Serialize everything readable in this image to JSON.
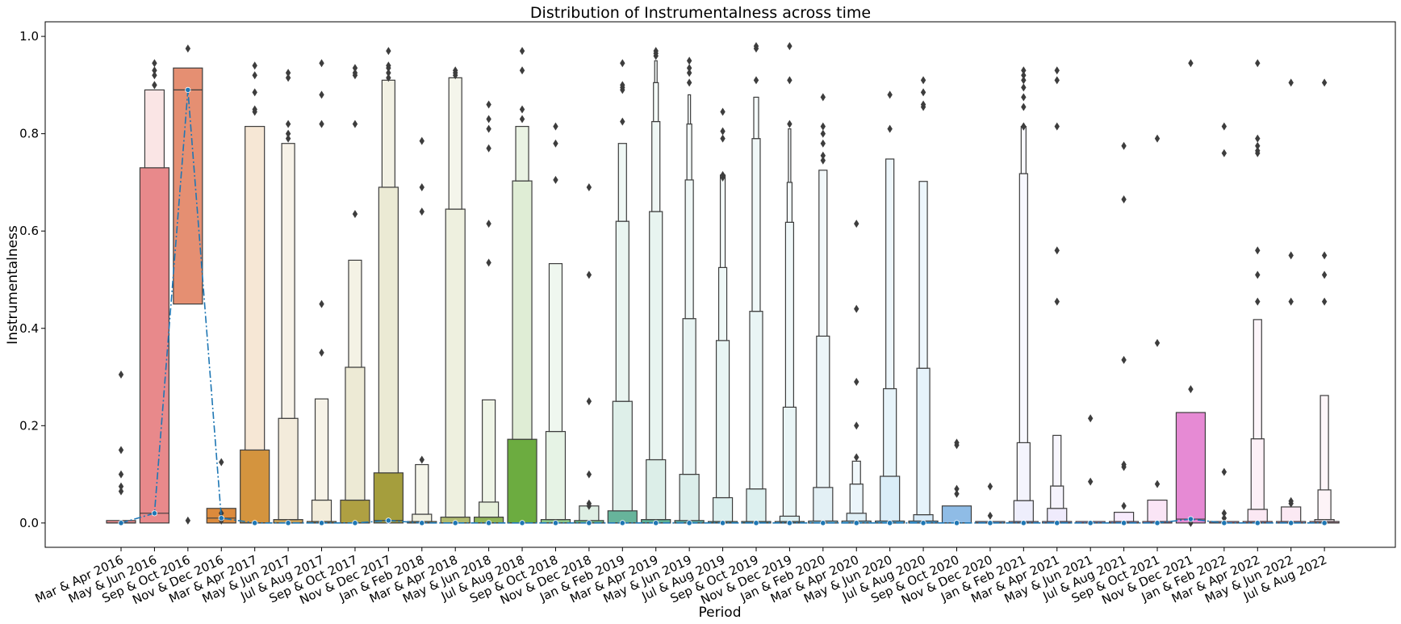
{
  "chart_data": {
    "type": "boxenplot",
    "title": "Distribution of Instrumentalness across time",
    "xlabel": "Period",
    "ylabel": "Instrumentalness",
    "ylim": [
      -0.05,
      1.03
    ],
    "yticks": [
      "0.0",
      "0.2",
      "0.4",
      "0.6",
      "0.8",
      "1.0"
    ],
    "grid": false,
    "overlay": {
      "type": "line",
      "style": "dash-dot",
      "marker": "circle",
      "color": "#1f77b4",
      "statistic": "median"
    },
    "categories": [
      "Mar & Apr 2016",
      "May & Jun 2016",
      "Sep & Oct 2016",
      "Nov & Dec 2016",
      "Mar & Apr 2017",
      "May & Jun 2017",
      "Jul & Aug 2017",
      "Sep & Oct 2017",
      "Nov & Dec 2017",
      "Jan & Feb 2018",
      "Mar & Apr 2018",
      "May & Jun 2018",
      "Jul & Aug 2018",
      "Sep & Oct 2018",
      "Nov & Dec 2018",
      "Jan & Feb 2019",
      "Mar & Apr 2019",
      "May & Jun 2019",
      "Jul & Aug 2019",
      "Sep & Oct 2019",
      "Nov & Dec 2019",
      "Jan & Feb 2020",
      "Mar & Apr 2020",
      "May & Jun 2020",
      "Jul & Aug 2020",
      "Sep & Oct 2020",
      "Nov & Dec 2020",
      "Jan & Feb 2021",
      "Mar & Apr 2021",
      "May & Jun 2021",
      "Jul & Aug 2021",
      "Sep & Oct 2021",
      "Nov & Dec 2021",
      "Jan & Feb 2022",
      "Mar & Apr 2022",
      "May & Jun 2022",
      "Jul & Aug 2022"
    ],
    "colors": [
      "#e8898b",
      "#e8898b",
      "#e58f72",
      "#dc8a3c",
      "#d4943e",
      "#c9a25a",
      "#c3a959",
      "#afa042",
      "#a59e3d",
      "#b7b66c",
      "#b0bb6f",
      "#8fb456",
      "#6cac40",
      "#8ec98a",
      "#6db783",
      "#67b49b",
      "#5eb397",
      "#5eb1a6",
      "#5bb6b0",
      "#65b9b4",
      "#64b5bf",
      "#80bcd1",
      "#6eb6d8",
      "#55aede",
      "#4da6e0",
      "#8fbce6",
      "#9eb4ee",
      "#b0b0f0",
      "#b7a6f0",
      "#c9a3f2",
      "#d9a4f0",
      "#e88ad8",
      "#e68ad4",
      "#ed9bcf",
      "#ee97c8",
      "#ef9dc8",
      "#f2a6c6"
    ],
    "medians": [
      0.0,
      0.02,
      0.89,
      0.01,
      0.0,
      0.0,
      0.0,
      0.0,
      0.005,
      0.0,
      0.0,
      0.0,
      0.0,
      0.0,
      0.0,
      0.0,
      0.0,
      0.0,
      0.0,
      0.0,
      0.0,
      0.0,
      0.0,
      0.0,
      0.0,
      0.0,
      0.0,
      0.0,
      0.0,
      0.0,
      0.0,
      0.0,
      0.008,
      0.0,
      0.0,
      0.0,
      0.0
    ],
    "boxes": [
      [
        [
          0.0,
          0.005
        ]
      ],
      [
        [
          0.0,
          0.73
        ],
        [
          0.73,
          0.89
        ]
      ],
      [
        [
          0.45,
          0.935
        ]
      ],
      [
        [
          0.0,
          0.03
        ]
      ],
      [
        [
          0.0,
          0.15
        ],
        [
          0.15,
          0.815
        ]
      ],
      [
        [
          0.0,
          0.007
        ],
        [
          0.007,
          0.215
        ],
        [
          0.215,
          0.78
        ]
      ],
      [
        [
          0.0,
          0.003
        ],
        [
          0.003,
          0.047
        ],
        [
          0.047,
          0.255
        ]
      ],
      [
        [
          0.0,
          0.047
        ],
        [
          0.047,
          0.32
        ],
        [
          0.32,
          0.54
        ]
      ],
      [
        [
          0.0,
          0.103
        ],
        [
          0.103,
          0.69
        ],
        [
          0.69,
          0.91
        ]
      ],
      [
        [
          0.0,
          0.003
        ],
        [
          0.003,
          0.018
        ],
        [
          0.018,
          0.12
        ]
      ],
      [
        [
          0.0,
          0.012
        ],
        [
          0.012,
          0.645
        ],
        [
          0.645,
          0.915
        ]
      ],
      [
        [
          0.0,
          0.012
        ],
        [
          0.012,
          0.043
        ],
        [
          0.043,
          0.253
        ]
      ],
      [
        [
          0.0,
          0.172
        ],
        [
          0.172,
          0.703
        ],
        [
          0.703,
          0.815
        ]
      ],
      [
        [
          0.0,
          0.007
        ],
        [
          0.007,
          0.188
        ],
        [
          0.188,
          0.533
        ]
      ],
      [
        [
          0.0,
          0.005
        ],
        [
          0.005,
          0.035
        ]
      ],
      [
        [
          0.0,
          0.025
        ],
        [
          0.025,
          0.25
        ],
        [
          0.25,
          0.62
        ],
        [
          0.62,
          0.78
        ]
      ],
      [
        [
          0.0,
          0.007
        ],
        [
          0.007,
          0.13
        ],
        [
          0.13,
          0.64
        ],
        [
          0.64,
          0.825
        ],
        [
          0.825,
          0.905
        ],
        [
          0.905,
          0.95
        ]
      ],
      [
        [
          0.0,
          0.005
        ],
        [
          0.005,
          0.1
        ],
        [
          0.1,
          0.42
        ],
        [
          0.42,
          0.705
        ],
        [
          0.705,
          0.82
        ],
        [
          0.82,
          0.88
        ]
      ],
      [
        [
          0.0,
          0.003
        ],
        [
          0.003,
          0.052
        ],
        [
          0.052,
          0.375
        ],
        [
          0.375,
          0.525
        ],
        [
          0.525,
          0.715
        ]
      ],
      [
        [
          0.0,
          0.003
        ],
        [
          0.003,
          0.07
        ],
        [
          0.07,
          0.435
        ],
        [
          0.435,
          0.79
        ],
        [
          0.79,
          0.875
        ]
      ],
      [
        [
          0.0,
          0.003
        ],
        [
          0.003,
          0.014
        ],
        [
          0.014,
          0.238
        ],
        [
          0.238,
          0.618
        ],
        [
          0.618,
          0.7
        ],
        [
          0.7,
          0.81
        ]
      ],
      [
        [
          0.0,
          0.004
        ],
        [
          0.004,
          0.073
        ],
        [
          0.073,
          0.384
        ],
        [
          0.384,
          0.725
        ]
      ],
      [
        [
          0.0,
          0.004
        ],
        [
          0.004,
          0.02
        ],
        [
          0.02,
          0.08
        ],
        [
          0.08,
          0.127
        ]
      ],
      [
        [
          0.0,
          0.004
        ],
        [
          0.004,
          0.096
        ],
        [
          0.096,
          0.276
        ],
        [
          0.276,
          0.748
        ]
      ],
      [
        [
          0.0,
          0.004
        ],
        [
          0.004,
          0.017
        ],
        [
          0.017,
          0.318
        ],
        [
          0.318,
          0.702
        ]
      ],
      [
        [
          0.0,
          0.035
        ]
      ],
      [
        [
          0.0,
          0.003
        ]
      ],
      [
        [
          0.0,
          0.003
        ],
        [
          0.003,
          0.046
        ],
        [
          0.046,
          0.165
        ],
        [
          0.165,
          0.718
        ],
        [
          0.718,
          0.815
        ]
      ],
      [
        [
          0.0,
          0.003
        ],
        [
          0.003,
          0.03
        ],
        [
          0.03,
          0.076
        ],
        [
          0.076,
          0.18
        ]
      ],
      [
        [
          0.0,
          0.003
        ]
      ],
      [
        [
          0.0,
          0.003
        ],
        [
          0.003,
          0.022
        ]
      ],
      [
        [
          0.0,
          0.003
        ],
        [
          0.003,
          0.047
        ]
      ],
      [
        [
          0.0,
          0.227
        ]
      ],
      [
        [
          0.0,
          0.003
        ]
      ],
      [
        [
          0.0,
          0.003
        ],
        [
          0.003,
          0.028
        ],
        [
          0.028,
          0.173
        ],
        [
          0.173,
          0.418
        ]
      ],
      [
        [
          0.0,
          0.003
        ],
        [
          0.003,
          0.033
        ]
      ],
      [
        [
          0.0,
          0.003
        ],
        [
          0.003,
          0.007
        ],
        [
          0.007,
          0.068
        ],
        [
          0.068,
          0.262
        ]
      ]
    ],
    "outliers": [
      [
        0.305,
        0.15,
        0.1,
        0.075,
        0.065
      ],
      [
        0.945,
        0.93,
        0.92,
        0.9,
        0.9
      ],
      [
        0.975,
        0.005
      ],
      [
        0.125,
        0.02,
        0.005
      ],
      [
        0.94,
        0.92,
        0.885,
        0.85,
        0.845
      ],
      [
        0.925,
        0.915,
        0.82,
        0.8,
        0.79
      ],
      [
        0.945,
        0.88,
        0.82,
        0.45,
        0.35
      ],
      [
        0.935,
        0.925,
        0.92,
        0.82,
        0.635
      ],
      [
        0.97,
        0.94,
        0.935,
        0.925,
        0.915
      ],
      [
        0.785,
        0.69,
        0.64,
        0.13
      ],
      [
        0.93,
        0.925,
        0.92
      ],
      [
        0.86,
        0.83,
        0.81,
        0.77,
        0.615,
        0.535
      ],
      [
        0.97,
        0.93,
        0.85,
        0.83
      ],
      [
        0.815,
        0.78,
        0.705
      ],
      [
        0.69,
        0.51,
        0.25,
        0.1,
        0.04,
        0.035
      ],
      [
        0.945,
        0.9,
        0.895,
        0.89,
        0.825
      ],
      [
        0.97,
        0.965,
        0.96
      ],
      [
        0.95,
        0.935,
        0.925,
        0.905
      ],
      [
        0.845,
        0.805,
        0.79,
        0.715,
        0.71
      ],
      [
        0.98,
        0.975,
        0.91
      ],
      [
        0.98,
        0.91,
        0.82
      ],
      [
        0.875,
        0.815,
        0.8,
        0.78,
        0.755,
        0.745
      ],
      [
        0.615,
        0.44,
        0.29,
        0.2,
        0.135
      ],
      [
        0.88,
        0.81
      ],
      [
        0.91,
        0.885,
        0.86,
        0.855
      ],
      [
        0.165,
        0.16,
        0.07,
        0.06
      ],
      [
        0.075,
        0.015
      ],
      [
        0.93,
        0.92,
        0.91,
        0.895,
        0.875,
        0.855,
        0.815,
        0.815
      ],
      [
        0.93,
        0.91,
        0.815,
        0.56,
        0.455
      ],
      [
        0.215,
        0.085
      ],
      [
        0.775,
        0.665,
        0.335,
        0.12,
        0.115,
        0.035
      ],
      [
        0.79,
        0.37,
        0.08
      ],
      [
        0.945,
        0.275,
        0.0
      ],
      [
        0.815,
        0.76,
        0.105,
        0.02,
        0.01
      ],
      [
        0.945,
        0.79,
        0.775,
        0.765,
        0.76,
        0.56,
        0.51,
        0.455
      ],
      [
        0.905,
        0.55,
        0.455,
        0.045,
        0.04
      ],
      [
        0.905,
        0.55,
        0.51,
        0.455
      ]
    ]
  }
}
